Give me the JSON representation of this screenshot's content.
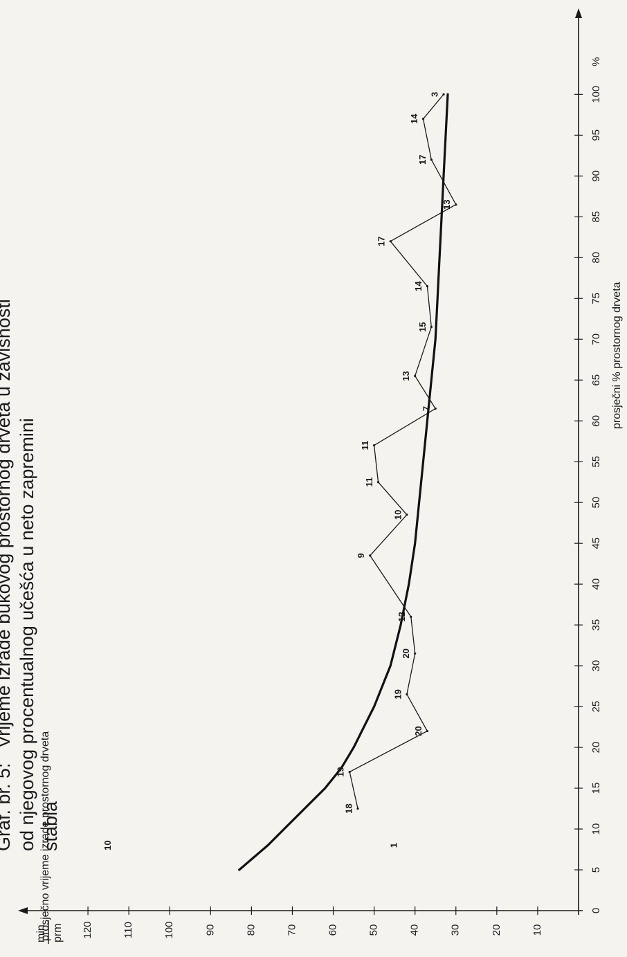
{
  "chart_data": {
    "type": "scatter",
    "title_prefix": "Graf. br. 5:",
    "title_lines": [
      "Vrijeme izrade bukovog prostornog drveta u zavisnosti",
      "od njegovog procentualnog učešća u neto zapremini",
      "stabla"
    ],
    "xlabel": "prosječni % prostornog drveta",
    "x_unit": "%",
    "ylabel": "prosječno vrijeme izrade prostornog drveta",
    "y_unit_numerator": "min",
    "y_unit_denominator": "prm",
    "xlim": [
      0,
      108
    ],
    "ylim": [
      0,
      130
    ],
    "x_ticks": [
      5,
      10,
      15,
      20,
      25,
      30,
      35,
      40,
      45,
      50,
      55,
      60,
      65,
      70,
      75,
      80,
      85,
      90,
      95,
      100
    ],
    "y_ticks": [
      10,
      20,
      30,
      40,
      50,
      60,
      70,
      80,
      90,
      100,
      110,
      120
    ],
    "series": [
      {
        "kind": "empirical",
        "points": [
          {
            "x": 12.5,
            "y": 54,
            "label": "18"
          },
          {
            "x": 17,
            "y": 56,
            "label": "19"
          },
          {
            "x": 22,
            "y": 37,
            "label": "20"
          },
          {
            "x": 26.5,
            "y": 42,
            "label": "19"
          },
          {
            "x": 31.5,
            "y": 40,
            "label": "20"
          },
          {
            "x": 36,
            "y": 41,
            "label": "12"
          },
          {
            "x": 43.5,
            "y": 51,
            "label": "9"
          },
          {
            "x": 48.5,
            "y": 42,
            "label": "10"
          },
          {
            "x": 52.5,
            "y": 49,
            "label": "11"
          },
          {
            "x": 57,
            "y": 50,
            "label": "11"
          },
          {
            "x": 61.5,
            "y": 35,
            "label": "7"
          },
          {
            "x": 65.5,
            "y": 40,
            "label": "13"
          },
          {
            "x": 71.5,
            "y": 36,
            "label": "15"
          },
          {
            "x": 76.5,
            "y": 37,
            "label": "14"
          },
          {
            "x": 82,
            "y": 46,
            "label": "17"
          },
          {
            "x": 86.5,
            "y": 30,
            "label": "13"
          },
          {
            "x": 92,
            "y": 36,
            "label": "17"
          },
          {
            "x": 97,
            "y": 38,
            "label": "14"
          },
          {
            "x": 100,
            "y": 33,
            "label": "3"
          }
        ]
      },
      {
        "kind": "fitted",
        "x": [
          5,
          8,
          10,
          12.5,
          15,
          17.5,
          20,
          22.5,
          25,
          30,
          35,
          40,
          45,
          50,
          55,
          60,
          65,
          70,
          75,
          80,
          85,
          90,
          95,
          100
        ],
        "y": [
          83,
          76,
          72,
          67,
          62,
          58,
          55,
          52.5,
          50,
          46,
          43.5,
          41.5,
          40,
          39,
          38,
          37,
          36,
          35,
          34.5,
          34,
          33.5,
          33,
          32.5,
          32
        ]
      }
    ],
    "isolated_labels": [
      {
        "x": 8,
        "y": 115,
        "label": "10"
      },
      {
        "x": 8,
        "y": 45,
        "label": "1"
      }
    ]
  }
}
